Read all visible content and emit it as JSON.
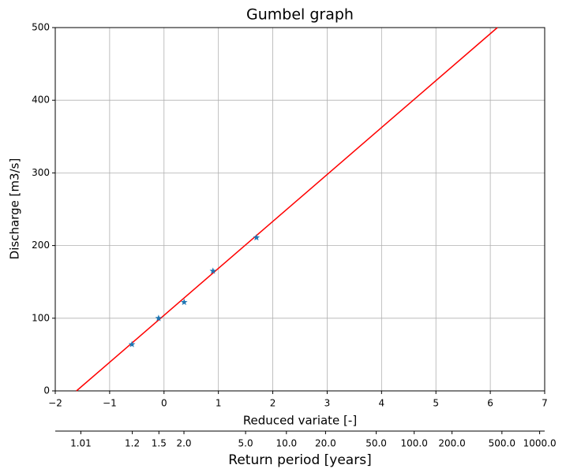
{
  "chart_data": {
    "type": "line",
    "title": "Gumbel graph",
    "xlabel": "Reduced variate [-]",
    "ylabel": "Discharge [m3/s]",
    "xlim": [
      -2,
      7
    ],
    "ylim": [
      0,
      500
    ],
    "xticks": [
      {
        "value": -2,
        "label": "−2"
      },
      {
        "value": -1,
        "label": "−1"
      },
      0,
      1,
      2,
      3,
      4,
      5,
      6,
      7
    ],
    "yticks": [
      0,
      100,
      200,
      300,
      400,
      500
    ],
    "grid": true,
    "fit": {
      "color": "#ff0000",
      "x": [
        -1.61,
        6.13
      ],
      "y": [
        0,
        500
      ]
    },
    "points": {
      "color": "#1f77b4",
      "marker": "star",
      "x": [
        -0.59,
        -0.1,
        0.37,
        0.9,
        1.7
      ],
      "y": [
        64,
        100,
        122,
        165,
        211
      ]
    },
    "secondary_axis": {
      "label": "Return period [years]",
      "scale": "gumbel",
      "ticks": [
        1.01,
        1.2,
        1.5,
        {
          "value": 2,
          "label": "2.0"
        },
        {
          "value": 5,
          "label": "5.0"
        },
        {
          "value": 10,
          "label": "10.0"
        },
        {
          "value": 20,
          "label": "20.0"
        },
        {
          "value": 50,
          "label": "50.0"
        },
        {
          "value": 100,
          "label": "100.0"
        },
        {
          "value": 200,
          "label": "200.0"
        },
        {
          "value": 500,
          "label": "500.0"
        },
        {
          "value": 1000,
          "label": "1000.0"
        }
      ]
    }
  }
}
